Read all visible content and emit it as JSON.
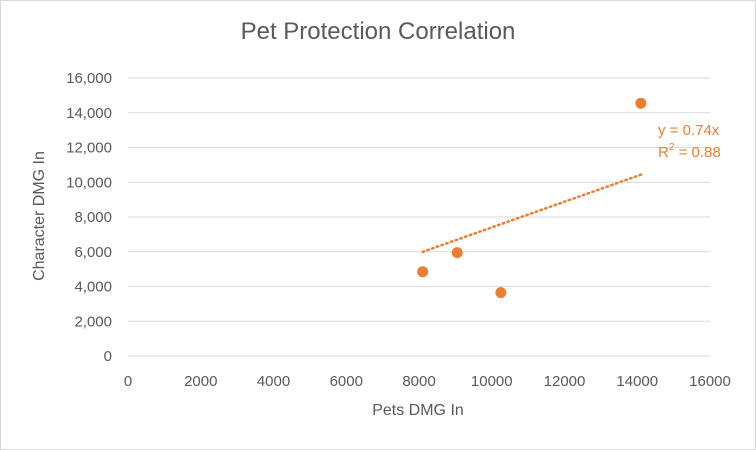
{
  "chart_data": {
    "type": "scatter",
    "title": "Pet Protection Correlation",
    "xlabel": "Pets DMG In",
    "ylabel": "Character  DMG In",
    "xlim": [
      0,
      16000
    ],
    "ylim": [
      0,
      16000
    ],
    "x_ticks": [
      "0",
      "2000",
      "4000",
      "6000",
      "8000",
      "10000",
      "12000",
      "14000",
      "16000"
    ],
    "y_ticks": [
      "0",
      "2,000",
      "4,000",
      "6,000",
      "8,000",
      "10,000",
      "12,000",
      "14,000",
      "16,000"
    ],
    "grid": "horizontal",
    "series": [
      {
        "color": "#ed7d31",
        "points": [
          {
            "x": 8100,
            "y": 4850
          },
          {
            "x": 9050,
            "y": 5950
          },
          {
            "x": 10250,
            "y": 3650
          },
          {
            "x": 14100,
            "y": 14550
          }
        ]
      }
    ],
    "trendline": {
      "type": "linear-through-origin",
      "slope": 0.74,
      "x_range": [
        8100,
        14100
      ],
      "color": "#ed7d31",
      "equation": "y = 0.74x",
      "r2_prefix": "R",
      "r2_sup": "2",
      "r2_value": " = 0.88"
    }
  }
}
